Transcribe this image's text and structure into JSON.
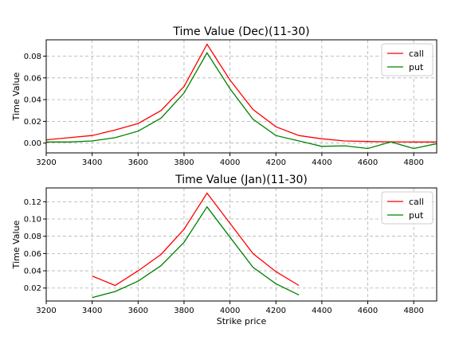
{
  "chart_data": [
    {
      "type": "line",
      "title": "Time Value (Dec)(11-30)",
      "xlabel": "",
      "ylabel": "Time Value",
      "xlim": [
        3200,
        4900
      ],
      "ylim": [
        -0.009,
        0.095
      ],
      "xticks": [
        3200,
        3400,
        3600,
        3800,
        4000,
        4200,
        4400,
        4600,
        4800
      ],
      "yticks": [
        0.0,
        0.02,
        0.04,
        0.06,
        0.08
      ],
      "ytick_labels": [
        "0.00",
        "0.02",
        "0.04",
        "0.06",
        "0.08"
      ],
      "grid": true,
      "legend_position": "top-right",
      "series": [
        {
          "name": "call",
          "color": "#ff0000",
          "x": [
            3200,
            3300,
            3400,
            3500,
            3600,
            3700,
            3800,
            3900,
            4000,
            4100,
            4200,
            4300,
            4400,
            4500,
            4600,
            4700,
            4800,
            4900
          ],
          "values": [
            0.003,
            0.005,
            0.007,
            0.012,
            0.018,
            0.03,
            0.052,
            0.091,
            0.058,
            0.031,
            0.015,
            0.007,
            0.004,
            0.002,
            0.0015,
            0.0012,
            0.001,
            0.001
          ]
        },
        {
          "name": "put",
          "color": "#008000",
          "x": [
            3200,
            3300,
            3400,
            3500,
            3600,
            3700,
            3800,
            3900,
            4000,
            4100,
            4200,
            4300,
            4400,
            4500,
            4600,
            4700,
            4800,
            4900
          ],
          "values": [
            0.001,
            0.001,
            0.002,
            0.005,
            0.011,
            0.023,
            0.046,
            0.083,
            0.05,
            0.022,
            0.007,
            0.002,
            -0.003,
            -0.0025,
            -0.005,
            0.001,
            -0.005,
            -0.0005
          ]
        }
      ]
    },
    {
      "type": "line",
      "title": "Time Value (Jan)(11-30)",
      "xlabel": "Strike price",
      "ylabel": "Time Value",
      "xlim": [
        3200,
        4900
      ],
      "ylim": [
        0.005,
        0.136
      ],
      "xticks": [
        3200,
        3400,
        3600,
        3800,
        4000,
        4200,
        4400,
        4600,
        4800
      ],
      "yticks": [
        0.02,
        0.04,
        0.06,
        0.08,
        0.1,
        0.12
      ],
      "ytick_labels": [
        "0.02",
        "0.04",
        "0.06",
        "0.08",
        "0.10",
        "0.12"
      ],
      "grid": true,
      "legend_position": "top-right",
      "series": [
        {
          "name": "call",
          "color": "#ff0000",
          "x": [
            3400,
            3500,
            3600,
            3700,
            3800,
            3900,
            4000,
            4100,
            4200,
            4300
          ],
          "values": [
            0.034,
            0.023,
            0.04,
            0.059,
            0.088,
            0.13,
            0.095,
            0.06,
            0.039,
            0.023
          ]
        },
        {
          "name": "put",
          "color": "#008000",
          "x": [
            3400,
            3500,
            3600,
            3700,
            3800,
            3900,
            4000,
            4100,
            4200,
            4300
          ],
          "values": [
            0.009,
            0.016,
            0.028,
            0.046,
            0.073,
            0.114,
            0.079,
            0.044,
            0.025,
            0.012
          ]
        }
      ]
    }
  ]
}
